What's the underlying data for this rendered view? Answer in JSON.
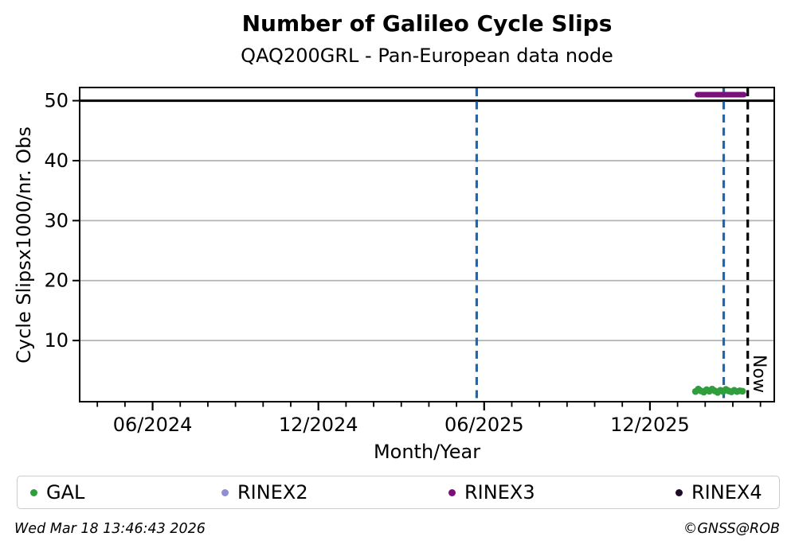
{
  "header": {
    "title": "Number of Galileo Cycle Slips",
    "subtitle": "QAQ200GRL - Pan-European data node"
  },
  "footer": {
    "timestamp": "Wed Mar 18 13:46:43 2026",
    "credit": "©GNSS@ROB"
  },
  "legend": {
    "items": [
      {
        "label": "GAL",
        "color": "#2f9e3c"
      },
      {
        "label": "RINEX2",
        "color": "#8f8fd2"
      },
      {
        "label": "RINEX3",
        "color": "#7b0f7b"
      },
      {
        "label": "RINEX4",
        "color": "#1f0a28"
      }
    ]
  },
  "chart_data": {
    "type": "scatter",
    "title": "Number of Galileo Cycle Slips",
    "subtitle": "QAQ200GRL - Pan-European data node",
    "xlabel": "Month/Year",
    "ylabel": "Cycle Slipsx1000/nr. Obs",
    "x_unit": "months since 2024-06",
    "xlim": [
      -2.64,
      22.5
    ],
    "ylim": [
      -0.2,
      52.2
    ],
    "y_ticks": [
      10,
      20,
      30,
      40,
      50
    ],
    "x_major_ticks": [
      {
        "t": 0,
        "label": "06/2024"
      },
      {
        "t": 6,
        "label": "12/2024"
      },
      {
        "t": 12,
        "label": "06/2025"
      },
      {
        "t": 18,
        "label": "12/2025"
      }
    ],
    "x_minor_tick_step": 1,
    "grid": true,
    "grid_color": "#b3b3b3",
    "reference_line": {
      "y": 50,
      "color": "#000000",
      "width": 3
    },
    "vlines": [
      {
        "t": 11.73,
        "color": "#1b69b4",
        "style": "dashed",
        "width": 3.2,
        "label": ""
      },
      {
        "t": 20.67,
        "color": "#1b69b4",
        "style": "dashed",
        "width": 3.2,
        "label": ""
      },
      {
        "t": 21.54,
        "color": "#000000",
        "style": "dashed",
        "width": 3.2,
        "label": "Now"
      }
    ],
    "series": [
      {
        "name": "GAL",
        "color": "#2f9e3c",
        "render": "scatter",
        "marker_radius": 4.3,
        "points": [
          [
            19.65,
            1.5
          ],
          [
            19.75,
            1.9
          ],
          [
            19.85,
            1.6
          ],
          [
            19.95,
            1.4
          ],
          [
            20.05,
            1.8
          ],
          [
            20.15,
            1.55
          ],
          [
            20.25,
            1.9
          ],
          [
            20.35,
            1.6
          ],
          [
            20.45,
            1.35
          ],
          [
            20.55,
            1.7
          ],
          [
            20.65,
            1.5
          ],
          [
            20.75,
            1.85
          ],
          [
            20.85,
            1.6
          ],
          [
            20.95,
            1.45
          ],
          [
            21.05,
            1.7
          ],
          [
            21.15,
            1.5
          ],
          [
            21.25,
            1.62
          ],
          [
            21.35,
            1.55
          ]
        ]
      },
      {
        "name": "RINEX3",
        "color": "#7b0f7b",
        "render": "thick-segment",
        "y": 51,
        "t_start": 19.72,
        "t_end": 21.4,
        "width": 7
      },
      {
        "name": "RINEX2",
        "color": "#8f8fd2",
        "render": "scatter",
        "points": []
      },
      {
        "name": "RINEX4",
        "color": "#1f0a28",
        "render": "scatter",
        "points": []
      }
    ]
  }
}
